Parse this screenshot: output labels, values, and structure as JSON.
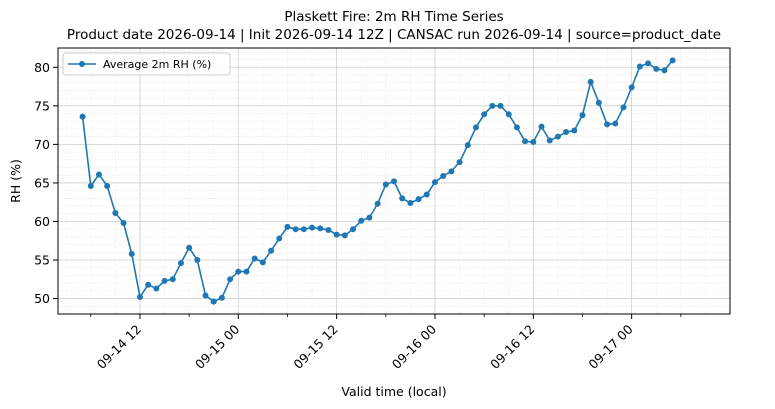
{
  "chart_data": {
    "type": "line",
    "title": "Plaskett Fire: 2m RH Time Series",
    "subtitle": "Product date 2026-09-14 | Init 2026-09-14 12Z | CANSAC run 2026-09-14 | source=product_date",
    "xlabel": "Valid time (local)",
    "ylabel": "RH (%)",
    "x_start": "2026-09-14 05:00",
    "x_step_hours": 1,
    "xlim": [
      "2026-09-14 02:00",
      "2026-09-17 12:00"
    ],
    "ylim": [
      48.0,
      82.5
    ],
    "x_ticks": [
      "09-14 12",
      "09-15 00",
      "09-15 12",
      "09-16 00",
      "09-16 12",
      "09-17 00"
    ],
    "y_ticks": [
      50,
      55,
      60,
      65,
      70,
      75,
      80
    ],
    "grid": true,
    "legend_position": "top-left",
    "series": [
      {
        "name": "Average 2m RH (%)",
        "color": "#1f77b4",
        "values": [
          73.6,
          64.6,
          66.1,
          64.6,
          61.1,
          59.8,
          55.8,
          50.2,
          51.8,
          51.3,
          52.3,
          52.5,
          54.6,
          56.6,
          55.0,
          50.4,
          49.6,
          50.1,
          52.5,
          53.5,
          53.5,
          55.2,
          54.7,
          56.2,
          57.8,
          59.3,
          59.0,
          59.0,
          59.2,
          59.1,
          58.9,
          58.3,
          58.2,
          59.0,
          60.1,
          60.5,
          62.3,
          64.8,
          65.2,
          63.0,
          62.4,
          62.9,
          63.5,
          65.1,
          65.9,
          66.5,
          67.7,
          69.9,
          72.2,
          73.9,
          75.0,
          75.0,
          73.9,
          72.2,
          70.4,
          70.3,
          72.3,
          70.5,
          71.0,
          71.6,
          71.8,
          73.8,
          78.1,
          75.4,
          72.6,
          72.7,
          74.8,
          77.4,
          80.1,
          80.5,
          79.8,
          79.6,
          80.9
        ]
      }
    ]
  }
}
